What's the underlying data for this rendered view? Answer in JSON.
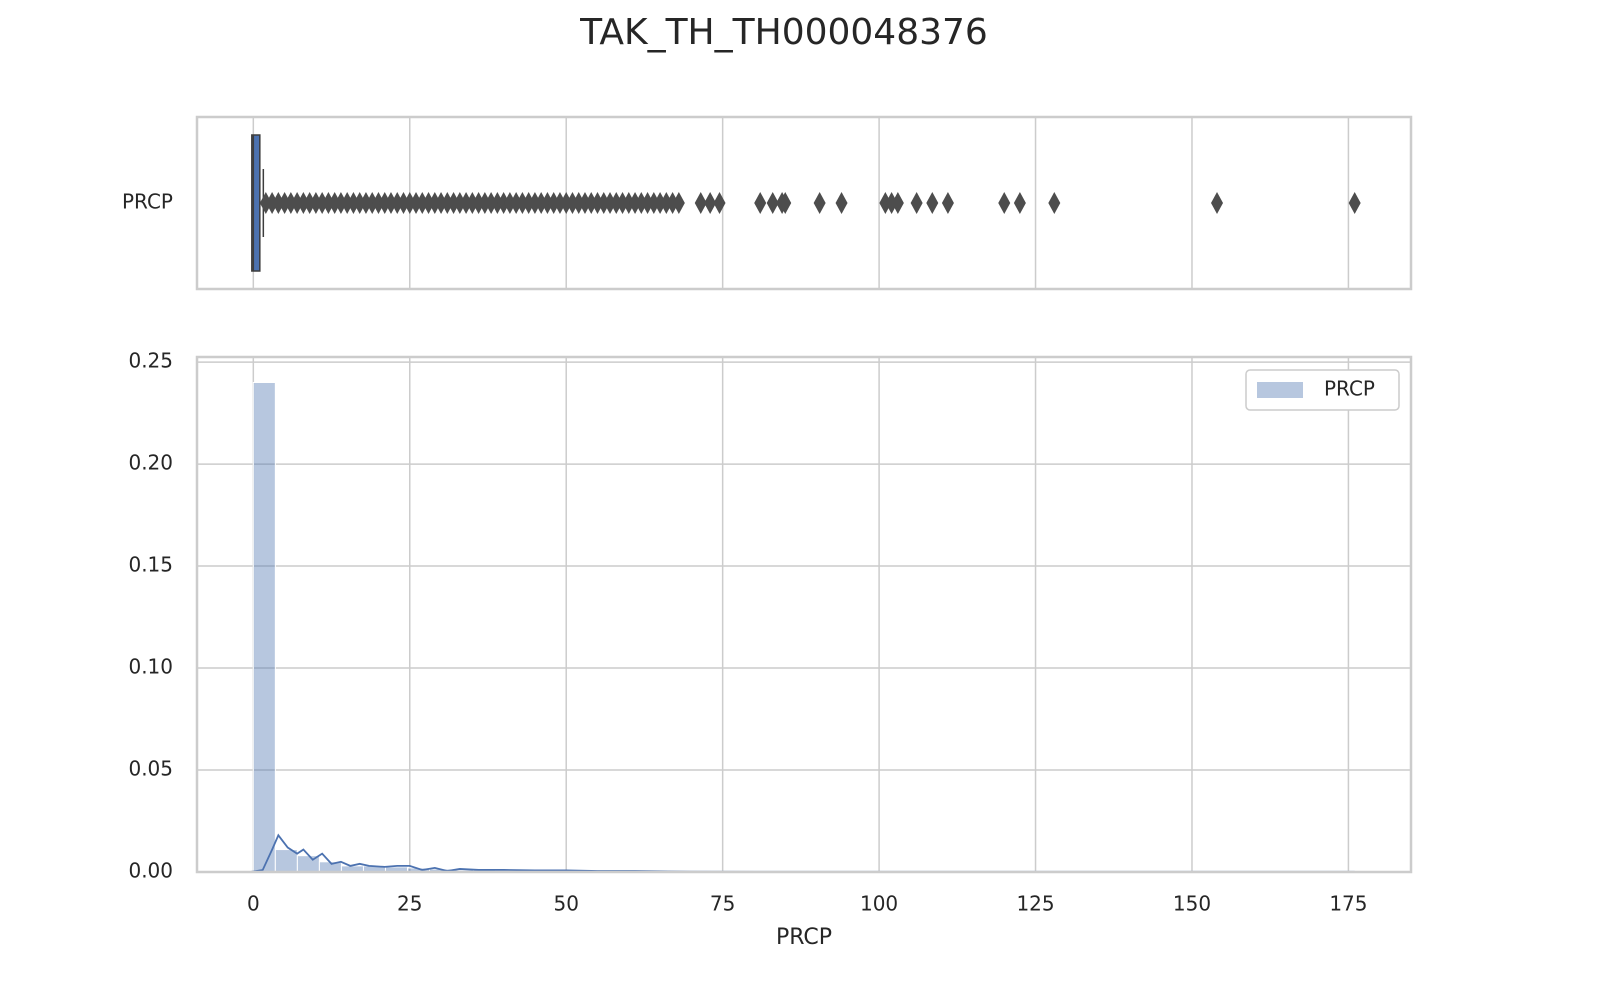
{
  "chart_data": [
    {
      "type": "box",
      "title": "TAK_TH_TH000048376",
      "categories": [
        "PRCP"
      ],
      "color": "#4c72b0",
      "q1": 0,
      "median": 0,
      "q3": 0.8,
      "whislo": 0,
      "whishi": 1.6,
      "fliers": [
        2,
        3,
        4,
        5,
        6,
        7,
        8,
        9,
        10,
        11,
        12,
        13,
        14,
        15,
        16,
        17,
        18,
        19,
        20,
        21,
        22,
        23,
        24,
        25,
        26,
        27,
        28,
        29,
        30,
        31,
        32,
        33,
        34,
        35,
        36,
        37,
        38,
        39,
        40,
        41,
        42,
        43,
        44,
        45,
        46,
        47,
        48,
        49,
        50,
        51,
        52,
        53,
        54,
        55,
        56,
        57,
        58,
        59,
        60,
        61,
        62,
        63,
        64,
        65,
        66,
        67,
        68,
        71.5,
        73,
        74.5,
        81,
        83,
        84.5,
        85,
        90.5,
        94,
        101,
        102,
        103,
        106,
        108.5,
        111,
        120,
        122.5,
        128,
        154,
        176
      ],
      "flier_color": "#4d4d4d",
      "xlim": [
        -9,
        185
      ],
      "xticks": [
        0,
        25,
        50,
        75,
        100,
        125,
        150,
        175
      ],
      "grid": true
    },
    {
      "type": "histogram",
      "xlabel": "PRCP",
      "name": "PRCP",
      "color": "#4c72b0",
      "legend": "upper right",
      "bins": [
        0,
        3.52,
        7.04,
        10.56,
        14.08,
        17.6,
        21.12,
        24.64,
        28.16,
        31.68,
        35.2,
        38.72,
        42.24,
        45.76,
        49.28,
        52.8,
        56.32,
        59.84,
        63.36,
        66.88,
        70.4,
        73.92,
        77.44,
        80.96,
        84.48,
        88,
        91.52,
        95.04,
        98.56,
        102.08,
        105.6,
        109.12,
        112.64,
        116.16,
        119.68,
        123.2,
        126.72,
        130.24,
        133.76,
        137.28,
        140.8,
        144.32,
        147.84,
        151.36,
        154.88,
        158.4,
        161.92,
        165.44,
        168.96,
        172.48,
        176
      ],
      "values": [
        0.24,
        0.011,
        0.008,
        0.005,
        0.003,
        0.003,
        0.0025,
        0.002,
        0.0015,
        0.001,
        0.001,
        0.0008,
        0.0008,
        0.0006,
        0.0005,
        0.0004,
        0.0004,
        0.0003,
        0.0003,
        0.0002,
        0.0001,
        0.0001,
        0.0001,
        5e-05,
        0.0001,
        0,
        5e-05,
        0,
        5e-05,
        5e-05,
        5e-05,
        0,
        0,
        5e-05,
        0,
        0,
        0,
        5e-05,
        0,
        0,
        0,
        0,
        5e-05,
        0,
        0,
        0,
        0,
        0,
        0,
        5e-05
      ],
      "kde": {
        "x": [
          -0.5,
          1.5,
          3,
          4,
          5.5,
          7,
          8,
          9.5,
          11,
          12.5,
          14,
          15.5,
          17,
          18.5,
          21,
          23,
          25,
          27,
          29,
          31,
          33,
          36,
          40,
          45,
          50,
          55,
          60,
          70,
          80,
          100,
          176
        ],
        "values": [
          0,
          0.001,
          0.011,
          0.018,
          0.012,
          0.009,
          0.011,
          0.006,
          0.009,
          0.004,
          0.005,
          0.003,
          0.004,
          0.003,
          0.0025,
          0.003,
          0.003,
          0.001,
          0.002,
          0.0005,
          0.0015,
          0.001,
          0.001,
          0.0008,
          0.0008,
          0.0005,
          0.0005,
          0.0002,
          0.0001,
          0.0001,
          0.0001
        ]
      },
      "xlim": [
        -9,
        185
      ],
      "xticks": [
        0,
        25,
        50,
        75,
        100,
        125,
        150,
        175
      ],
      "ylim": [
        0,
        0.2525
      ],
      "yticks": [
        {
          "value": 0,
          "label": "0.00"
        },
        0.05,
        {
          "value": 0.1,
          "label": "0.10"
        },
        0.15,
        {
          "value": 0.2,
          "label": "0.20"
        },
        0.25
      ],
      "grid": true
    }
  ]
}
